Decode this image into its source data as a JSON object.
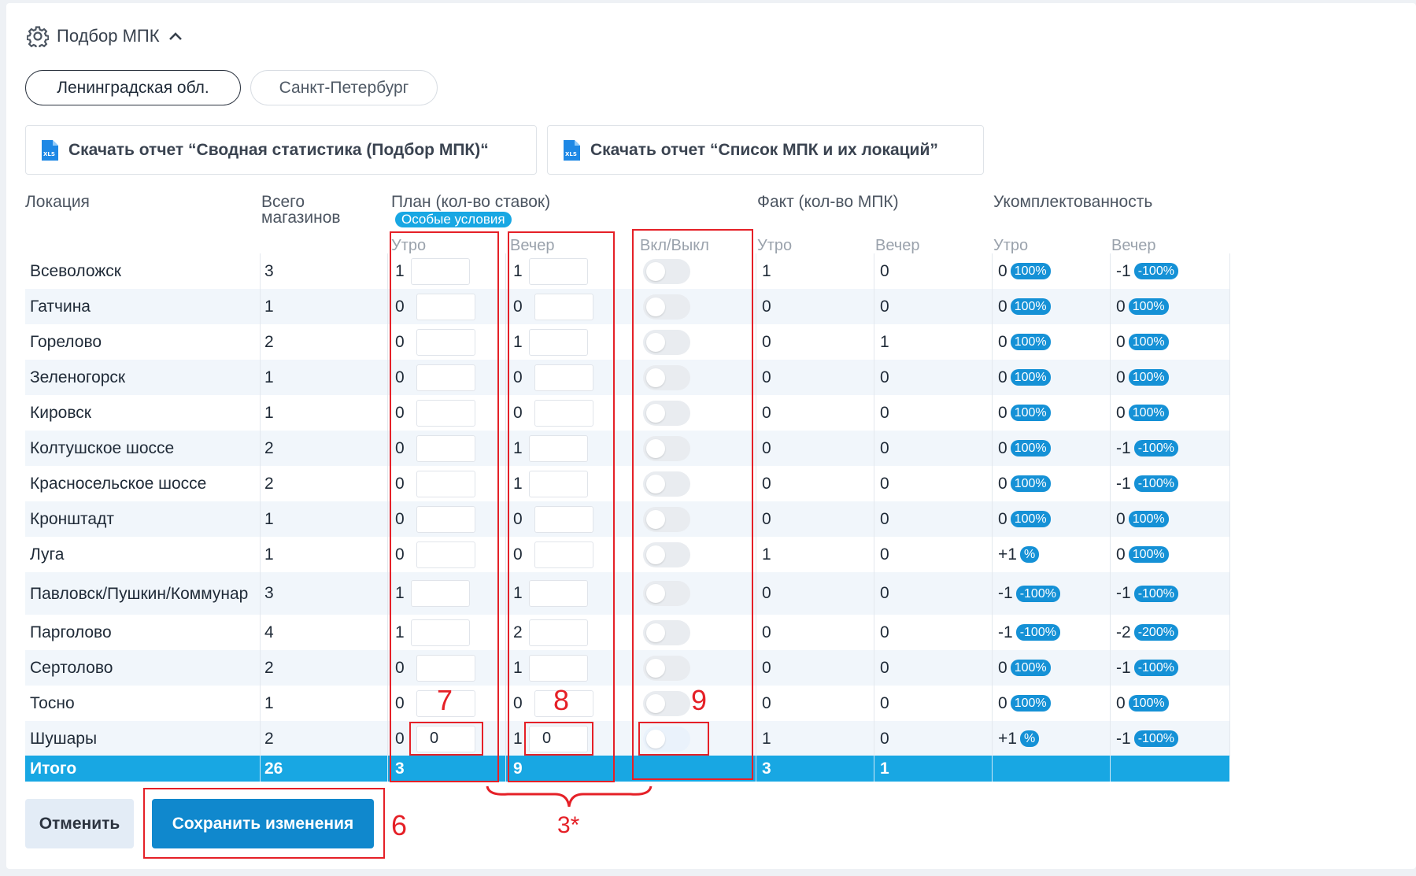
{
  "section": {
    "title": "Подбор МПК"
  },
  "regions": {
    "active": "Ленинградская обл.",
    "inactive": "Санкт-Петербург"
  },
  "reports": {
    "summary": "Скачать отчет “Сводная статистика (Подбор МПК)“",
    "list": "Скачать отчет “Список МПК и их локаций”"
  },
  "columns": {
    "location": "Локация",
    "total": "Всего магазинов",
    "plan": "План (кол-во ставок)",
    "special": "Особые условия",
    "fact": "Факт (кол-во МПК)",
    "staffing": "Укомплектованность",
    "morning": "Утро",
    "evening": "Вечер",
    "toggle": "Вкл/Выкл"
  },
  "rows": [
    {
      "loc": "Всеволожск",
      "total": "3",
      "pm": "1",
      "pe": "1",
      "fm": "1",
      "fe": "0",
      "um": "0",
      "um_pct": "100%",
      "ue": "-1",
      "ue_pct": "-100%"
    },
    {
      "loc": "Гатчина",
      "total": "1",
      "pm": "0",
      "pe": "0",
      "fm": "0",
      "fe": "0",
      "um": "0",
      "um_pct": "100%",
      "ue": "0",
      "ue_pct": "100%"
    },
    {
      "loc": "Горелово",
      "total": "2",
      "pm": "0",
      "pe": "1",
      "fm": "0",
      "fe": "1",
      "um": "0",
      "um_pct": "100%",
      "ue": "0",
      "ue_pct": "100%"
    },
    {
      "loc": "Зеленогорск",
      "total": "1",
      "pm": "0",
      "pe": "0",
      "fm": "0",
      "fe": "0",
      "um": "0",
      "um_pct": "100%",
      "ue": "0",
      "ue_pct": "100%"
    },
    {
      "loc": "Кировск",
      "total": "1",
      "pm": "0",
      "pe": "0",
      "fm": "0",
      "fe": "0",
      "um": "0",
      "um_pct": "100%",
      "ue": "0",
      "ue_pct": "100%"
    },
    {
      "loc": "Колтушское шоссе",
      "total": "2",
      "pm": "0",
      "pe": "1",
      "fm": "0",
      "fe": "0",
      "um": "0",
      "um_pct": "100%",
      "ue": "-1",
      "ue_pct": "-100%"
    },
    {
      "loc": "Красносельское шоссе",
      "total": "2",
      "pm": "0",
      "pe": "1",
      "fm": "0",
      "fe": "0",
      "um": "0",
      "um_pct": "100%",
      "ue": "-1",
      "ue_pct": "-100%"
    },
    {
      "loc": "Кронштадт",
      "total": "1",
      "pm": "0",
      "pe": "0",
      "fm": "0",
      "fe": "0",
      "um": "0",
      "um_pct": "100%",
      "ue": "0",
      "ue_pct": "100%"
    },
    {
      "loc": "Луга",
      "total": "1",
      "pm": "0",
      "pe": "0",
      "fm": "1",
      "fe": "0",
      "um": "+1",
      "um_pct": "%",
      "ue": "0",
      "ue_pct": "100%"
    },
    {
      "loc": "Павловск/Пушкин/Коммунар",
      "total": "3",
      "pm": "1",
      "pe": "1",
      "fm": "0",
      "fe": "0",
      "um": "-1",
      "um_pct": "-100%",
      "ue": "-1",
      "ue_pct": "-100%"
    },
    {
      "loc": "Парголово",
      "total": "4",
      "pm": "1",
      "pe": "2",
      "fm": "0",
      "fe": "0",
      "um": "-1",
      "um_pct": "-100%",
      "ue": "-2",
      "ue_pct": "-200%"
    },
    {
      "loc": "Сертолово",
      "total": "2",
      "pm": "0",
      "pe": "1",
      "fm": "0",
      "fe": "0",
      "um": "0",
      "um_pct": "100%",
      "ue": "-1",
      "ue_pct": "-100%"
    },
    {
      "loc": "Тосно",
      "total": "1",
      "pm": "0",
      "pe": "0",
      "fm": "0",
      "fe": "0",
      "um": "0",
      "um_pct": "100%",
      "ue": "0",
      "ue_pct": "100%"
    },
    {
      "loc": "Шушары",
      "total": "2",
      "pm": "0",
      "pe": "1",
      "fm": "1",
      "fe": "0",
      "um": "+1",
      "um_pct": "%",
      "ue": "-1",
      "ue_pct": "-100%",
      "pm_input": "0",
      "pe_input": "0"
    }
  ],
  "totals": {
    "label": "Итого",
    "total": "26",
    "pm": "3",
    "pe": "9",
    "fm": "3",
    "fe": "1"
  },
  "actions": {
    "cancel": "Отменить",
    "save": "Сохранить изменения"
  },
  "annotations": {
    "save": "6",
    "morning_input": "7",
    "evening_input": "8",
    "toggle": "9",
    "brace": "3*"
  },
  "colors": {
    "accent": "#18a7e3",
    "primary_button": "#1088cd",
    "badge": "#1591d6",
    "annotation": "#e52027"
  },
  "icons": {
    "settings": "gear-icon",
    "collapse": "chevron-up-icon",
    "report": "xls-file-icon"
  }
}
